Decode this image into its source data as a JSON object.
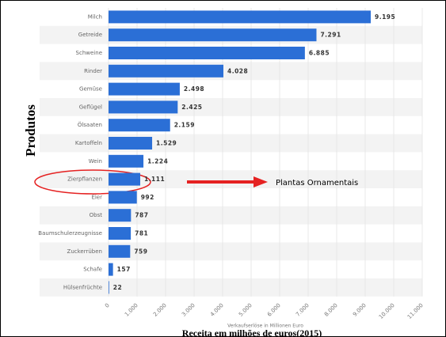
{
  "chart_data": {
    "type": "barh",
    "y_axis_title": "Produtos",
    "x_axis_title": "Receita em milhões de euros(2015)",
    "source_note": "Verkaufserlöse in Millionen Euro",
    "annotation": "Plantas Ornamentais",
    "categories": [
      "Milch",
      "Getreide",
      "Schweine",
      "Rinder",
      "Gemüse",
      "Geflügel",
      "Ölsaaten",
      "Kartoffeln",
      "Wein",
      "Zierpflanzen",
      "Eier",
      "Obst",
      "Baumschulerzeugnisse",
      "Zuckerrüben",
      "Schafe",
      "Hülsenfrüchte"
    ],
    "values": [
      9195,
      7291,
      6885,
      4028,
      2498,
      2425,
      2159,
      1529,
      1224,
      1111,
      992,
      787,
      781,
      759,
      157,
      22
    ],
    "value_labels": [
      "9.195",
      "7.291",
      "6.885",
      "4.028",
      "2.498",
      "2.425",
      "2.159",
      "1.529",
      "1.224",
      "1.111",
      "992",
      "787",
      "781",
      "759",
      "157",
      "22"
    ],
    "color": "#2b6fd6",
    "xlim": [
      0,
      11000
    ],
    "xticks": [
      0,
      {
        "value": 1000,
        "label": "1.000"
      },
      {
        "value": 2000,
        "label": "2.000"
      },
      {
        "value": 3000,
        "label": "3.000"
      },
      {
        "value": 4000,
        "label": "4.000"
      },
      {
        "value": 5000,
        "label": "5.000"
      },
      {
        "value": 6000,
        "label": "6.000"
      },
      {
        "value": 7000,
        "label": "7.000"
      },
      {
        "value": 8000,
        "label": "8.000"
      },
      {
        "value": 9000,
        "label": "9.000"
      },
      {
        "value": 10000,
        "label": "10.000"
      },
      {
        "value": 11000,
        "label": "11.000"
      }
    ],
    "grid": true
  }
}
